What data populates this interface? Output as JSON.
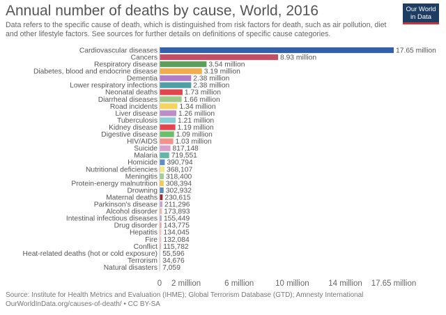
{
  "title": "Annual number of deaths by cause, World, 2016",
  "subtitle": "Data refers to the specific cause of death, which is distinguished from risk factors for death, such as air pollution, diet and other lifestyle factors. See sources for further details on definitions of specific cause categories.",
  "logo": {
    "line1": "Our World",
    "line2": "in Data",
    "colors": {
      "background": "#1d3d63",
      "stripe": "#c4363c"
    }
  },
  "source": {
    "line1": "Source: Institute for Health Metrics and Evaluation (IHME); Global Terrorism Database (GTD); Amnesty International",
    "line2": "OurWorldInData.org/causes-of-death/ • CC BY-SA"
  },
  "chart_data": {
    "type": "bar",
    "orientation": "horizontal",
    "grid": false,
    "xlim": [
      0,
      17650000
    ],
    "x_ticks": [
      {
        "value": 0,
        "label": "0"
      },
      {
        "value": 2000000,
        "label": "2 million"
      },
      {
        "value": 6000000,
        "label": "6 million"
      },
      {
        "value": 10000000,
        "label": "10 million"
      },
      {
        "value": 14000000,
        "label": "14 million"
      },
      {
        "value": 17650000,
        "label": "17.65 million"
      }
    ],
    "categories": [
      "Cardiovascular diseases",
      "Cancers",
      "Respiratory disease",
      "Diabetes, blood and endocrine disease",
      "Dementia",
      "Lower respiratory infections",
      "Neonatal deaths",
      "Diarrheal diseases",
      "Road incidents",
      "Liver disease",
      "Tuberculosis",
      "Kidney disease",
      "Digestive disease",
      "HIV/AIDS",
      "Suicide",
      "Malaria",
      "Homicide",
      "Nutritional deficiencies",
      "Meningitis",
      "Protein-energy malnutrition",
      "Drowning",
      "Maternal deaths",
      "Parkinson's disease",
      "Alcohol disorder",
      "Intestinal infectious diseases",
      "Drug disorder",
      "Hepatitis",
      "Fire",
      "Conflict",
      "Heat-related deaths (hot or cold exposure)",
      "Terrorism",
      "Natural disasters"
    ],
    "values": [
      17650000,
      8930000,
      3540000,
      3190000,
      2380000,
      2380000,
      1730000,
      1660000,
      1340000,
      1260000,
      1210000,
      1190000,
      1090000,
      1030000,
      817148,
      719551,
      390794,
      368107,
      318400,
      308394,
      302932,
      230615,
      211296,
      173893,
      155449,
      143775,
      134045,
      132084,
      115782,
      55596,
      34676,
      7059
    ],
    "value_labels": [
      "17.65 million",
      "8.93 million",
      "3.54 million",
      "3.19 million",
      "2.38 million",
      "2.38 million",
      "1.73 million",
      "1.66 million",
      "1.34 million",
      "1.26 million",
      "1.21 million",
      "1.19 million",
      "1.09 million",
      "1.03 million",
      "817,148",
      "719,551",
      "390,794",
      "368,107",
      "318,400",
      "308,394",
      "302,932",
      "230,615",
      "211,296",
      "173,893",
      "155,449",
      "143,775",
      "134,045",
      "132,084",
      "115,782",
      "55,596",
      "34,676",
      "7,059"
    ],
    "colors": [
      "#3360a9",
      "#c15065",
      "#5c9e5b",
      "#f0ad4e",
      "#b07cc6",
      "#4ea0a5",
      "#e0454c",
      "#9fc98a",
      "#f4d35e",
      "#b98ec9",
      "#8bcdd5",
      "#e4444e",
      "#6bbf6b",
      "#f1938c",
      "#d9a0cf",
      "#62b6a7",
      "#5f8fc0",
      "#f4e98a",
      "#a5cf9a",
      "#f2cc4a",
      "#5b8db5",
      "#9b2b32",
      "#c6a6d8",
      "#f3b3a6",
      "#b8a0cf",
      "#e9a5a8",
      "#f2c4c7",
      "#f2c6c6",
      "#e7b9bb",
      "#d7d7e8",
      "#dddddd",
      "#e3e3e3"
    ]
  }
}
